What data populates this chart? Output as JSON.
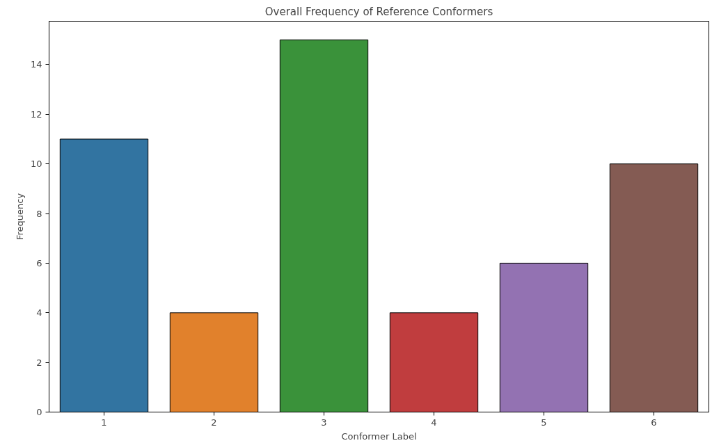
{
  "chart_data": {
    "type": "bar",
    "title": "Overall Frequency of Reference Conformers",
    "xlabel": "Conformer Label",
    "ylabel": "Frequency",
    "categories": [
      "1",
      "2",
      "3",
      "4",
      "5",
      "6"
    ],
    "values": [
      11,
      4,
      15,
      4,
      6,
      10
    ],
    "colors": [
      "#3274a1",
      "#e1812c",
      "#3a923a",
      "#c03d3e",
      "#9372b2",
      "#845b53"
    ],
    "ylim": [
      0,
      15.75
    ],
    "yticks": [
      0,
      2,
      4,
      6,
      8,
      10,
      12,
      14
    ],
    "grid": false
  }
}
